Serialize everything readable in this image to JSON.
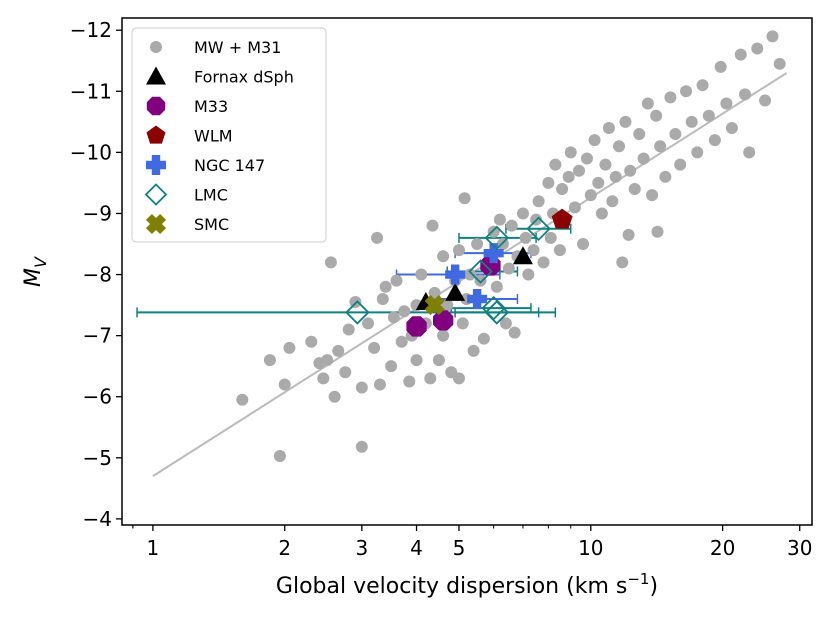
{
  "chart_data": {
    "type": "scatter",
    "xscale": "log",
    "xlim": [
      0.85,
      32
    ],
    "ylim": [
      -3.9,
      -12.2
    ],
    "xlabel": "Global velocity dispersion (km s",
    "xlabel_sup": "−1",
    "xlabel_close": ")",
    "ylabel_main": "M",
    "ylabel_sub": "V",
    "xticks": [
      {
        "value": 1,
        "label": "1"
      },
      {
        "value": 2,
        "label": "2"
      },
      {
        "value": 3,
        "label": "3"
      },
      {
        "value": 4,
        "label": "4"
      },
      {
        "value": 5,
        "label": "5"
      },
      {
        "value": 10,
        "label": "10"
      },
      {
        "value": 20,
        "label": "20"
      },
      {
        "value": 30,
        "label": "30"
      }
    ],
    "yticks": [
      {
        "value": -4,
        "label": "−4"
      },
      {
        "value": -5,
        "label": "−5"
      },
      {
        "value": -6,
        "label": "−6"
      },
      {
        "value": -7,
        "label": "−7"
      },
      {
        "value": -8,
        "label": "−8"
      },
      {
        "value": -9,
        "label": "−9"
      },
      {
        "value": -10,
        "label": "−10"
      },
      {
        "value": -11,
        "label": "−11"
      },
      {
        "value": -12,
        "label": "−12"
      }
    ],
    "fit_line": {
      "x": [
        1,
        28
      ],
      "y": [
        -4.7,
        -11.3
      ],
      "color": "#bbbbbb"
    },
    "legend_position": "upper-left",
    "series": [
      {
        "name": "MW + M31",
        "marker": "circle",
        "color": "#aaaaaa",
        "size": 6,
        "points": [
          [
            1.6,
            -5.95
          ],
          [
            1.85,
            -6.6
          ],
          [
            2.0,
            -6.2
          ],
          [
            2.05,
            -6.8
          ],
          [
            1.95,
            -5.03
          ],
          [
            2.3,
            -6.9
          ],
          [
            2.4,
            -6.55
          ],
          [
            2.45,
            -6.3
          ],
          [
            2.5,
            -6.6
          ],
          [
            2.6,
            -6.0
          ],
          [
            2.65,
            -6.75
          ],
          [
            2.75,
            -6.4
          ],
          [
            2.8,
            -7.1
          ],
          [
            2.9,
            -7.55
          ],
          [
            3.0,
            -6.15
          ],
          [
            3.0,
            -5.18
          ],
          [
            3.1,
            -7.2
          ],
          [
            3.2,
            -6.8
          ],
          [
            3.3,
            -6.2
          ],
          [
            3.35,
            -7.6
          ],
          [
            3.4,
            -7.8
          ],
          [
            3.5,
            -6.5
          ],
          [
            3.55,
            -7.3
          ],
          [
            3.6,
            -7.9
          ],
          [
            3.7,
            -6.9
          ],
          [
            3.75,
            -7.4
          ],
          [
            3.85,
            -6.25
          ],
          [
            3.9,
            -7.0
          ],
          [
            4.0,
            -7.5
          ],
          [
            4.0,
            -6.6
          ],
          [
            4.1,
            -8.0
          ],
          [
            4.2,
            -7.2
          ],
          [
            4.3,
            -6.3
          ],
          [
            4.4,
            -7.7
          ],
          [
            4.5,
            -6.6
          ],
          [
            4.6,
            -7.0
          ],
          [
            4.6,
            -8.3
          ],
          [
            4.7,
            -7.5
          ],
          [
            4.8,
            -6.4
          ],
          [
            4.9,
            -7.9
          ],
          [
            5.0,
            -8.4
          ],
          [
            5.0,
            -6.3
          ],
          [
            5.1,
            -7.2
          ],
          [
            5.2,
            -7.6
          ],
          [
            5.3,
            -8.0
          ],
          [
            5.4,
            -6.75
          ],
          [
            5.5,
            -8.5
          ],
          [
            5.6,
            -7.9
          ],
          [
            5.7,
            -6.95
          ],
          [
            5.8,
            -8.2
          ],
          [
            6.0,
            -8.7
          ],
          [
            6.1,
            -7.8
          ],
          [
            6.2,
            -8.9
          ],
          [
            6.3,
            -8.5
          ],
          [
            6.4,
            -7.2
          ],
          [
            6.5,
            -8.1
          ],
          [
            6.6,
            -8.8
          ],
          [
            6.7,
            -7.05
          ],
          [
            6.8,
            -8.3
          ],
          [
            7.0,
            -9.0
          ],
          [
            7.1,
            -8.6
          ],
          [
            7.2,
            -8.0
          ],
          [
            7.4,
            -8.4
          ],
          [
            7.5,
            -8.9
          ],
          [
            7.6,
            -9.2
          ],
          [
            7.8,
            -8.2
          ],
          [
            8.0,
            -9.5
          ],
          [
            8.1,
            -8.6
          ],
          [
            8.2,
            -9.0
          ],
          [
            8.3,
            -9.8
          ],
          [
            8.5,
            -8.4
          ],
          [
            8.6,
            -9.4
          ],
          [
            8.7,
            -8.9
          ],
          [
            8.9,
            -9.6
          ],
          [
            9.0,
            -10.0
          ],
          [
            9.2,
            -9.1
          ],
          [
            9.4,
            -9.7
          ],
          [
            9.6,
            -8.5
          ],
          [
            9.8,
            -9.9
          ],
          [
            10.0,
            -9.3
          ],
          [
            10.2,
            -10.2
          ],
          [
            10.4,
            -9.5
          ],
          [
            10.6,
            -9.0
          ],
          [
            10.8,
            -9.8
          ],
          [
            11.0,
            -10.4
          ],
          [
            11.2,
            -9.2
          ],
          [
            11.4,
            -9.6
          ],
          [
            11.6,
            -10.1
          ],
          [
            11.8,
            -8.2
          ],
          [
            12.0,
            -10.5
          ],
          [
            12.3,
            -9.7
          ],
          [
            12.6,
            -9.4
          ],
          [
            12.9,
            -10.3
          ],
          [
            13.2,
            -9.9
          ],
          [
            13.5,
            -10.8
          ],
          [
            13.8,
            -9.3
          ],
          [
            14.1,
            -10.6
          ],
          [
            14.4,
            -10.1
          ],
          [
            14.8,
            -9.6
          ],
          [
            15.2,
            -10.9
          ],
          [
            15.6,
            -10.3
          ],
          [
            16.0,
            -9.8
          ],
          [
            16.5,
            -11.0
          ],
          [
            17.0,
            -10.5
          ],
          [
            17.5,
            -10.0
          ],
          [
            18.0,
            -11.1
          ],
          [
            18.6,
            -10.6
          ],
          [
            19.2,
            -10.2
          ],
          [
            19.8,
            -11.4
          ],
          [
            20.4,
            -10.8
          ],
          [
            21.0,
            -10.4
          ],
          [
            22.0,
            -11.6
          ],
          [
            22.5,
            -10.95
          ],
          [
            23.0,
            -10.0
          ],
          [
            24.0,
            -11.7
          ],
          [
            25.0,
            -10.85
          ],
          [
            26.0,
            -11.9
          ],
          [
            27.0,
            -11.45
          ],
          [
            2.55,
            -8.2
          ],
          [
            3.25,
            -8.6
          ],
          [
            4.35,
            -8.8
          ],
          [
            5.15,
            -9.25
          ],
          [
            14.2,
            -8.7
          ],
          [
            12.2,
            -8.65
          ]
        ]
      },
      {
        "name": "Fornax dSph",
        "marker": "triangle",
        "color": "#000000",
        "size": 10,
        "points": [
          [
            4.2,
            -7.55
          ],
          [
            4.9,
            -7.7
          ],
          [
            7.0,
            -8.3
          ]
        ]
      },
      {
        "name": "M33",
        "marker": "octagon",
        "color": "#800080",
        "size": 11,
        "points": [
          [
            4.0,
            -7.15
          ],
          [
            4.6,
            -7.25
          ],
          [
            5.9,
            -8.15
          ]
        ]
      },
      {
        "name": "WLM",
        "marker": "pentagon",
        "color": "#8b0000",
        "size": 11,
        "points": [
          [
            8.6,
            -8.9
          ]
        ]
      },
      {
        "name": "NGC 147",
        "marker": "plus",
        "color": "#4169e1",
        "size": 10,
        "points": [
          [
            4.9,
            -8.0
          ],
          [
            5.5,
            -7.6
          ],
          [
            6.0,
            -8.35
          ]
        ],
        "xerr": [
          [
            3.6,
            6.2
          ],
          [
            4.3,
            6.8
          ],
          [
            4.9,
            7.3
          ]
        ]
      },
      {
        "name": "LMC",
        "marker": "diamond",
        "color": "#108080",
        "size": 11,
        "points": [
          [
            2.93,
            -7.38
          ],
          [
            5.6,
            -8.05
          ],
          [
            6.1,
            -8.6
          ],
          [
            6.0,
            -7.45
          ],
          [
            6.1,
            -7.38
          ],
          [
            7.6,
            -8.75
          ]
        ],
        "xerr": [
          [
            0.92,
            8.3
          ],
          [
            4.7,
            6.8
          ],
          [
            5.0,
            7.5
          ],
          [
            4.8,
            7.3
          ],
          [
            4.9,
            7.6
          ],
          [
            6.4,
            9.0
          ]
        ]
      },
      {
        "name": "SMC",
        "marker": "cross",
        "color": "#808000",
        "size": 10,
        "points": [
          [
            4.4,
            -7.5
          ]
        ]
      }
    ]
  }
}
